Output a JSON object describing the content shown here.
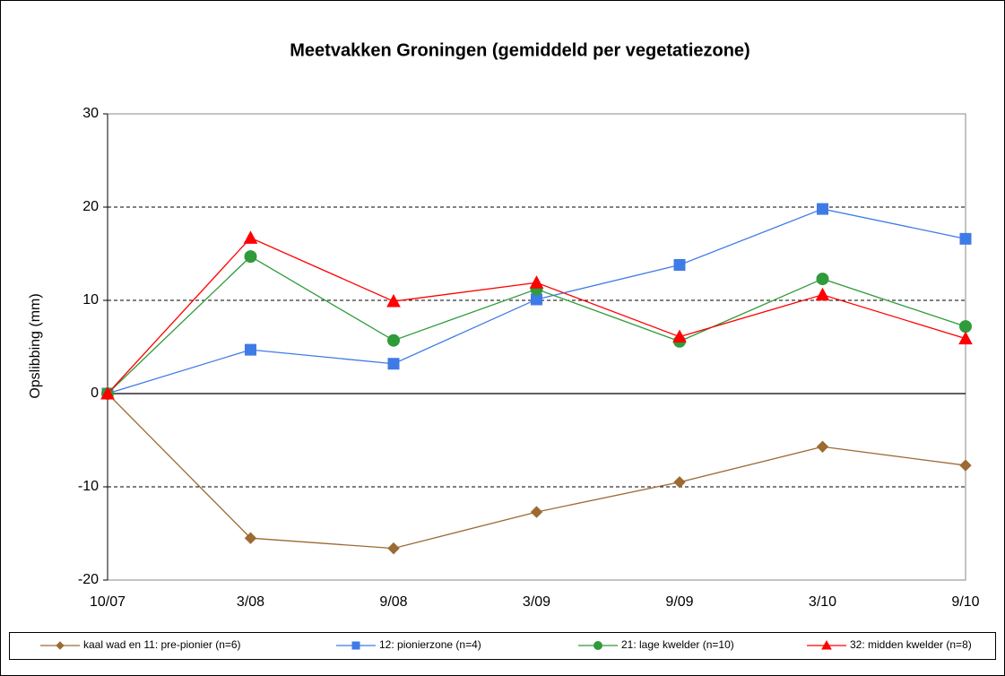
{
  "chart_data": {
    "type": "line",
    "title": "Meetvakken Groningen (gemiddeld per vegetatiezone)",
    "y_label": "Opslibbing (mm)",
    "categories": [
      "10/07",
      "3/08",
      "9/08",
      "3/09",
      "9/09",
      "3/10",
      "9/10"
    ],
    "series": [
      {
        "name": "kaal wad en 11: pre-pionier (n=6)",
        "color": "#9c6a32",
        "marker": "diamond",
        "values": [
          0,
          -15.5,
          -16.6,
          -12.7,
          -9.5,
          -5.7,
          -7.7
        ]
      },
      {
        "name": "12: pionierzone (n=4)",
        "color": "#3f7be6",
        "marker": "square",
        "values": [
          0,
          4.7,
          3.2,
          10.1,
          13.8,
          19.8,
          16.6
        ]
      },
      {
        "name": "21: lage kwelder (n=10)",
        "color": "#2f9b3a",
        "marker": "circle",
        "values": [
          0,
          14.7,
          5.7,
          11.2,
          5.6,
          12.3,
          7.2
        ]
      },
      {
        "name": "32: midden kwelder (n=8)",
        "color": "#ff0000",
        "marker": "triangle",
        "values": [
          0,
          16.7,
          9.9,
          11.9,
          6.1,
          10.6,
          5.9
        ]
      }
    ],
    "ylim": [
      -20,
      30
    ],
    "yticks": [
      -20,
      -10,
      0,
      10,
      20,
      30
    ],
    "grid": true,
    "legend": "bottom"
  }
}
